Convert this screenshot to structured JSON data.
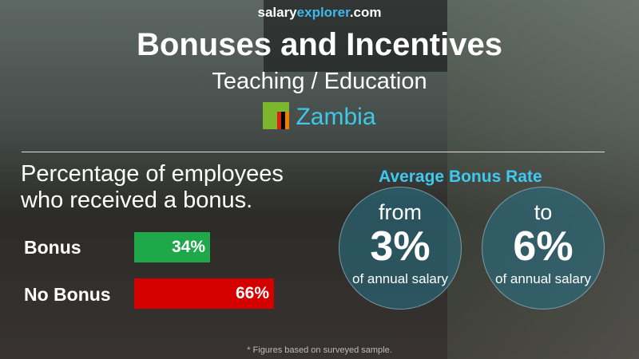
{
  "brand": {
    "part1": "salary",
    "part2": "explorer",
    "part3": ".com"
  },
  "title": "Bonuses and Incentives",
  "subtitle": "Teaching / Education",
  "country": "Zambia",
  "flag_colors": {
    "field": "#7bb62e",
    "stripes": [
      "#de2010",
      "#000000",
      "#ef7d00"
    ]
  },
  "question": [
    "Percentage of employees",
    "who received a bonus."
  ],
  "chart_data": {
    "type": "bar",
    "orientation": "horizontal",
    "categories": [
      "Bonus",
      "No Bonus"
    ],
    "values": [
      34,
      66
    ],
    "value_labels": [
      "34%",
      "66%"
    ],
    "colors": [
      "#1fa84a",
      "#d40000"
    ]
  },
  "bonus_rate": {
    "heading": "Average Bonus Rate",
    "from": {
      "label": "from",
      "value": "3%",
      "caption": "of annual salary"
    },
    "to": {
      "label": "to",
      "value": "6%",
      "caption": "of annual salary"
    }
  },
  "footnote": "* Figures based on surveyed sample."
}
